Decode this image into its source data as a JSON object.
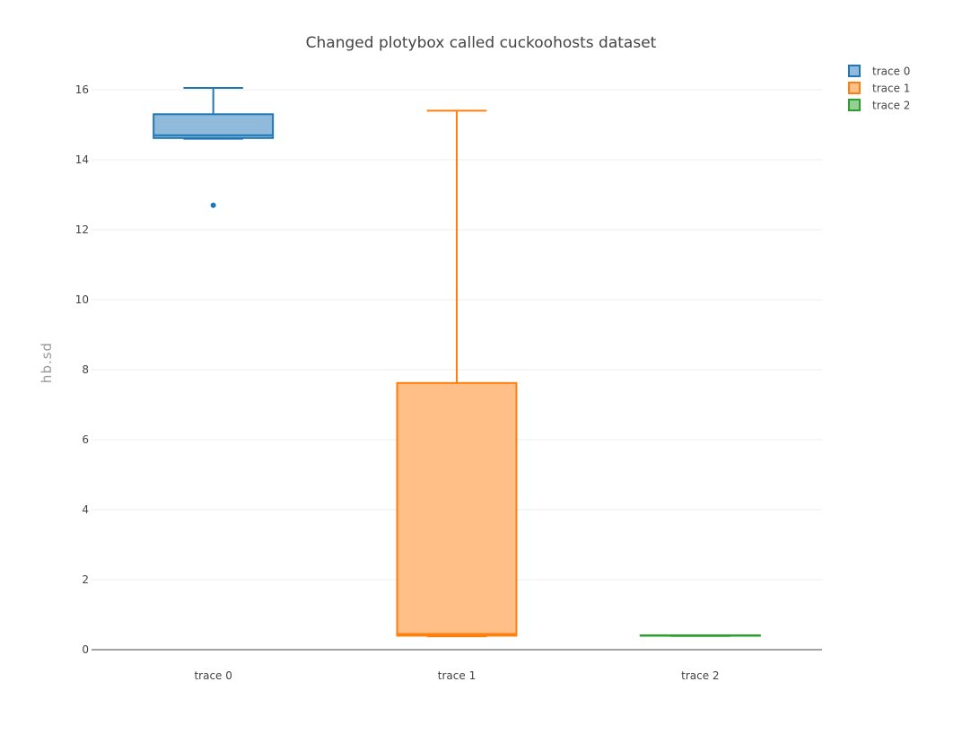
{
  "chart_data": {
    "type": "box",
    "title": "Changed plotybox called cuckoohosts dataset",
    "xlabel": "",
    "ylabel": "hb.sd",
    "ylim": [
      0,
      16.5
    ],
    "yticks": [
      0,
      2,
      4,
      6,
      8,
      10,
      12,
      14,
      16
    ],
    "categories": [
      "trace 0",
      "trace 1",
      "trace 2"
    ],
    "grid": true,
    "legend_position": "top-right",
    "series": [
      {
        "name": "trace 0",
        "color": "#1f77b4",
        "fill": "#8fbadb",
        "lowerfence": 14.6,
        "q1": 14.62,
        "median": 14.7,
        "q3": 15.3,
        "upperfence": 16.05,
        "outliers": [
          12.7
        ]
      },
      {
        "name": "trace 1",
        "color": "#ff7f0e",
        "fill": "#ffbf86",
        "lowerfence": 0.38,
        "q1": 0.4,
        "median": 0.45,
        "q3": 7.62,
        "upperfence": 15.4,
        "outliers": []
      },
      {
        "name": "trace 2",
        "color": "#2ca02c",
        "fill": "#95cf95",
        "lowerfence": 0.39,
        "q1": 0.4,
        "median": 0.4,
        "q3": 0.41,
        "upperfence": 0.41,
        "outliers": []
      }
    ]
  }
}
